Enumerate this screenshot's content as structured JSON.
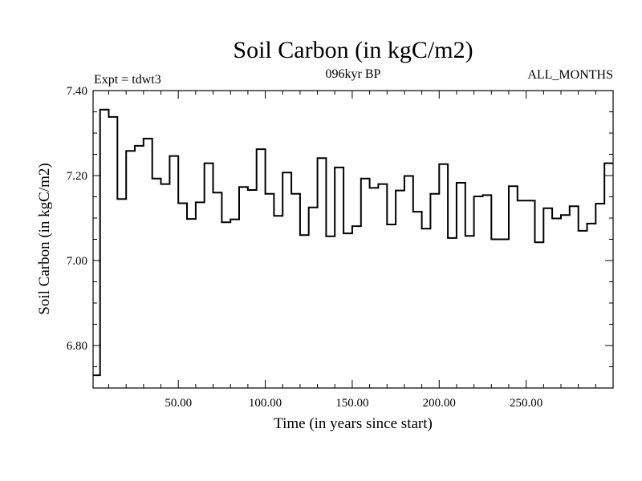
{
  "chart_data": {
    "type": "line",
    "style": "step",
    "title": "Soil Carbon (in kgC/m2)",
    "subtitle": "096kyr BP",
    "left_label": "Expt = tdwt3",
    "right_label": "ALL_MONTHS",
    "xlabel": "Time (in years since start)",
    "ylabel": "Soil Carbon (in kgC/m2)",
    "xlim": [
      1,
      300
    ],
    "ylim": [
      6.7,
      7.4
    ],
    "x_ticks": [
      50,
      100,
      150,
      200,
      250
    ],
    "x_tick_labels": [
      "50.00",
      "100.00",
      "150.00",
      "200.00",
      "250.00"
    ],
    "y_ticks": [
      6.8,
      7.0,
      7.2,
      7.4
    ],
    "y_tick_labels": [
      "6.80",
      "7.00",
      "7.20",
      "7.40"
    ],
    "series": [
      {
        "name": "Soil Carbon",
        "x": [
          1,
          5,
          10,
          15,
          20,
          25,
          30,
          35,
          40,
          45,
          50,
          55,
          60,
          65,
          70,
          75,
          80,
          85,
          90,
          95,
          100,
          105,
          110,
          115,
          120,
          125,
          130,
          135,
          140,
          145,
          150,
          155,
          160,
          165,
          170,
          175,
          180,
          185,
          190,
          195,
          200,
          205,
          210,
          215,
          220,
          225,
          230,
          235,
          240,
          245,
          250,
          255,
          260,
          265,
          270,
          275,
          280,
          285,
          290,
          295,
          300
        ],
        "values": [
          6.73,
          7.355,
          7.338,
          7.145,
          7.258,
          7.27,
          7.287,
          7.193,
          7.18,
          7.246,
          7.135,
          7.098,
          7.137,
          7.229,
          7.16,
          7.09,
          7.097,
          7.173,
          7.166,
          7.262,
          7.157,
          7.105,
          7.207,
          7.157,
          7.06,
          7.125,
          7.241,
          7.057,
          7.219,
          7.064,
          7.081,
          7.193,
          7.171,
          7.18,
          7.085,
          7.165,
          7.199,
          7.115,
          7.075,
          7.157,
          7.227,
          7.053,
          7.183,
          7.058,
          7.151,
          7.154,
          7.05,
          7.05,
          7.175,
          7.141,
          7.141,
          7.043,
          7.123,
          7.099,
          7.107,
          7.128,
          7.07,
          7.087,
          7.134,
          7.229,
          7.229
        ]
      }
    ]
  }
}
